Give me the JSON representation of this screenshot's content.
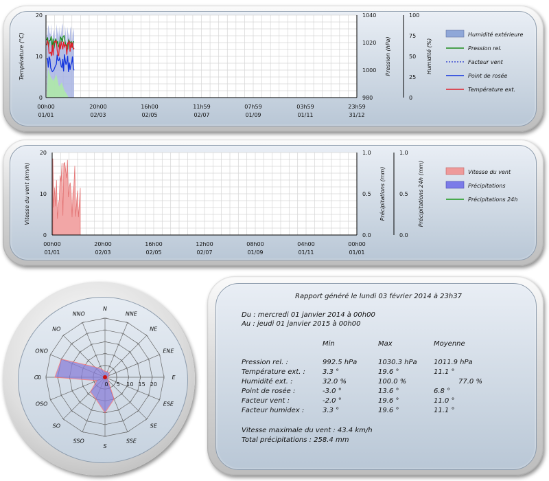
{
  "colors": {
    "humidity": "#8f9fd8",
    "pressure": "#1a8a1a",
    "windchill": "#2233cc",
    "dewpoint": "#1133dd",
    "temperature": "#e0202a",
    "wind": "#ee8888",
    "rain": "#7777ee",
    "rain24": "#1a9a1a",
    "rose_fill_red": "#ff7f7f",
    "rose_fill_blue": "#8080e0"
  },
  "chart1": {
    "yleft_label": "Température (°C)",
    "yleft_ticks": [
      "20",
      "10",
      "0"
    ],
    "ymid_label": "Pression (hPa)",
    "ymid_ticks": [
      "1040",
      "1020",
      "1000",
      "980"
    ],
    "yright_label": "Humidité (%)",
    "yright_ticks": [
      "100",
      "75",
      "50",
      "25",
      "0"
    ],
    "x_times": [
      "00h00",
      "20h00",
      "16h00",
      "11h59",
      "07h59",
      "03h59",
      "23h59"
    ],
    "x_dates": [
      "01/01",
      "02/03",
      "02/05",
      "02/07",
      "01/09",
      "01/11",
      "31/12"
    ],
    "legend": [
      {
        "label": "Humidité extérieure",
        "icon": "filled-area-swatch"
      },
      {
        "label": "Pression rel.",
        "icon": "line-swatch"
      },
      {
        "label": "Facteur vent",
        "icon": "dotted-line-swatch"
      },
      {
        "label": "Point de rosée",
        "icon": "line-swatch"
      },
      {
        "label": "Température ext.",
        "icon": "line-swatch"
      }
    ]
  },
  "chart2": {
    "yleft_label": "Vitesse du vent (km/h)",
    "yleft_ticks": [
      "20",
      "10",
      "0"
    ],
    "ymid_label": "Précipitations (mm)",
    "ymid_ticks": [
      "1.0",
      "0.5",
      "0.0"
    ],
    "yright_label": "Précipitations 24h (mm)",
    "yright_ticks": [
      "1.0",
      "0.5",
      "0.0"
    ],
    "x_times": [
      "00h00",
      "20h00",
      "16h00",
      "12h00",
      "08h00",
      "04h00",
      "00h00"
    ],
    "x_dates": [
      "01/01",
      "02/03",
      "02/05",
      "02/07",
      "01/09",
      "01/11",
      "01/01"
    ],
    "legend": [
      {
        "label": "Vitesse du vent",
        "icon": "filled-area-swatch"
      },
      {
        "label": "Précipitations",
        "icon": "filled-area-swatch"
      },
      {
        "label": "Précipitations 24h",
        "icon": "line-swatch"
      }
    ]
  },
  "rose": {
    "directions": [
      "N",
      "NNE",
      "NE",
      "ENE",
      "E",
      "ESE",
      "SE",
      "SSE",
      "S",
      "SSO",
      "SO",
      "OSO",
      "O",
      "ONO",
      "NO",
      "NNO"
    ],
    "ring_labels": [
      "0",
      "5",
      "10",
      "15",
      "20"
    ],
    "left_label": "0"
  },
  "report": {
    "title": "Rapport généré le lundi 03 février 2014 à 23h37",
    "from": "Du : mercredi 01 janvier 2014 à 00h00",
    "to": "Au : jeudi 01 janvier 2015 à 00h00",
    "headers": [
      "Min",
      "Max",
      "Moyenne"
    ],
    "rows": [
      {
        "label": "Pression rel. :",
        "min": "992.5 hPa",
        "max": "1030.3 hPa",
        "avg": "1011.9 hPa"
      },
      {
        "label": "Température ext. :",
        "min": "3.3 °",
        "max": "19.6 °",
        "avg": "11.1 °"
      },
      {
        "label": "Humidité ext. :",
        "min": "32.0 %",
        "max": "100.0 %",
        "avg": "77.0 %"
      },
      {
        "label": "Point de rosée :",
        "min": "-3.0 °",
        "max": "13.6 °",
        "avg": "6.8 °"
      },
      {
        "label": "Facteur vent :",
        "min": "-2.0 °",
        "max": "19.6 °",
        "avg": "11.0 °"
      },
      {
        "label": "Facteur humidex :",
        "min": "3.3 °",
        "max": "19.6 °",
        "avg": "11.1 °"
      }
    ],
    "wind_max": "Vitesse maximale du vent : 43.4 km/h",
    "total_rain": "Total précipitations : 258.4 mm"
  }
}
